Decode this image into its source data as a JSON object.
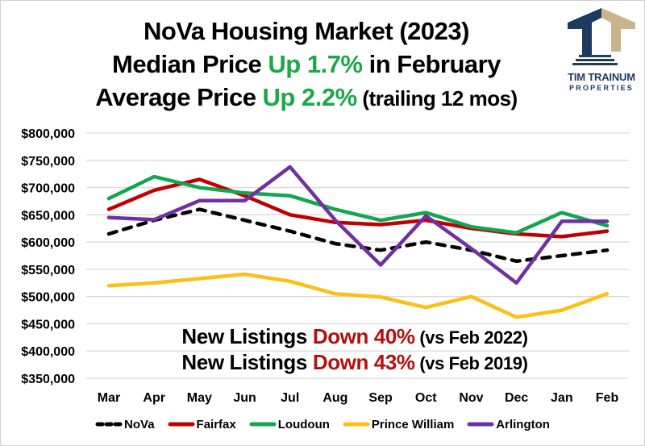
{
  "title": {
    "line1": "NoVa Housing Market (2023)",
    "line2_prefix": "Median Price ",
    "line2_highlight": "Up 1.7%",
    "line2_suffix": " in February",
    "line3_prefix": "Average Price ",
    "line3_highlight": "Up 2.2%",
    "line3_suffix": " (trailing 12 mos)"
  },
  "logo": {
    "name": "TIM TRAINUM",
    "sub": "PROPERTIES",
    "colors": {
      "navy": "#1e3a5f",
      "tan": "#c9b48a"
    }
  },
  "annotations": {
    "line1_prefix": "New Listings ",
    "line1_highlight": "Down 40%",
    "line1_suffix": " (vs Feb 2022)",
    "line2_prefix": "New Listings ",
    "line2_highlight": "Down 43%",
    "line2_suffix": " (vs Feb 2019)"
  },
  "colors": {
    "highlight_up": "#1da64a",
    "highlight_down": "#b50f0f",
    "grid": "#d9d9d9"
  },
  "chart_data": {
    "type": "line",
    "title": "NoVa Housing Market (2023)",
    "xlabel": "",
    "ylabel": "",
    "categories": [
      "Mar",
      "Apr",
      "May",
      "Jun",
      "Jul",
      "Aug",
      "Sep",
      "Oct",
      "Nov",
      "Dec",
      "Jan",
      "Feb"
    ],
    "ylim": [
      350000,
      800000
    ],
    "yticks": [
      350000,
      400000,
      450000,
      500000,
      550000,
      600000,
      650000,
      700000,
      750000,
      800000
    ],
    "ytick_labels": [
      "$350,000",
      "$400,000",
      "$450,000",
      "$500,000",
      "$550,000",
      "$600,000",
      "$650,000",
      "$700,000",
      "$750,000",
      "$800,000"
    ],
    "grid": true,
    "legend_position": "bottom",
    "series": [
      {
        "name": "NoVa",
        "color": "#000000",
        "dashed": true,
        "values": [
          615000,
          640000,
          660000,
          640000,
          620000,
          597000,
          585000,
          600000,
          585000,
          565000,
          575000,
          585000
        ]
      },
      {
        "name": "Fairfax",
        "color": "#c00000",
        "dashed": false,
        "values": [
          660000,
          695000,
          715000,
          685000,
          650000,
          636000,
          632000,
          640000,
          625000,
          615000,
          610000,
          620000
        ]
      },
      {
        "name": "Loudoun",
        "color": "#12a650",
        "dashed": false,
        "values": [
          680000,
          720000,
          700000,
          690000,
          685000,
          660000,
          640000,
          654000,
          628000,
          617000,
          654000,
          630000
        ]
      },
      {
        "name": "Prince William",
        "color": "#fdbf16",
        "dashed": false,
        "values": [
          520000,
          525000,
          533000,
          541000,
          528000,
          505000,
          499000,
          480000,
          500000,
          462000,
          475000,
          505000
        ]
      },
      {
        "name": "Arlington",
        "color": "#7030a0",
        "dashed": false,
        "values": [
          645000,
          641000,
          676000,
          676000,
          738000,
          640000,
          558000,
          648000,
          588000,
          525000,
          638000,
          638000
        ]
      }
    ]
  }
}
